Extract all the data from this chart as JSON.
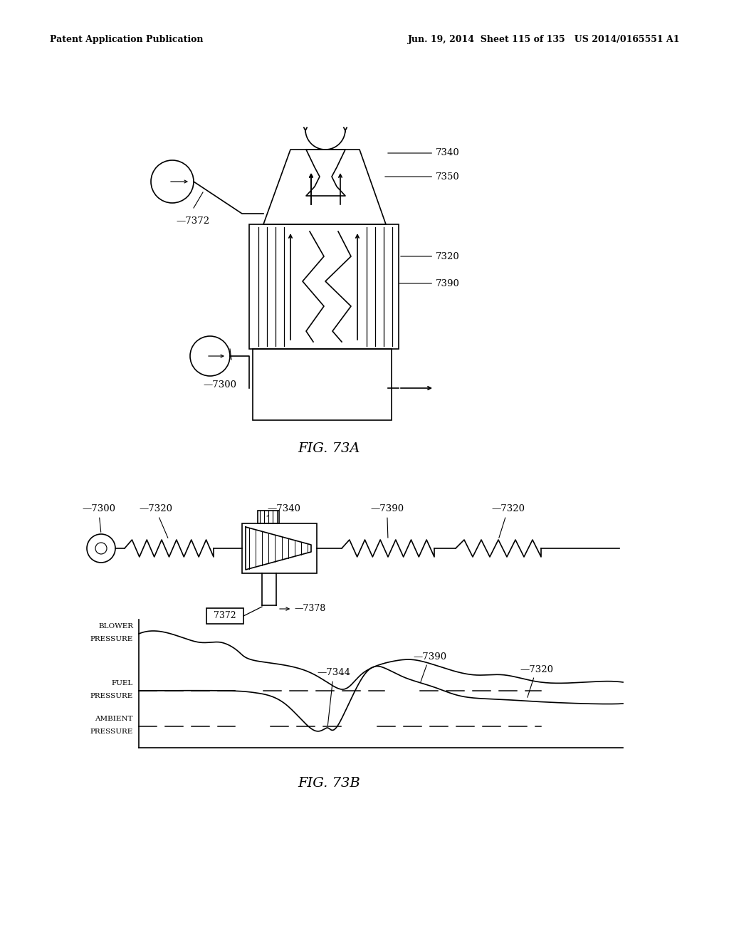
{
  "header_left": "Patent Application Publication",
  "header_right": "Jun. 19, 2014  Sheet 115 of 135   US 2014/0165551 A1",
  "fig73a_label": "FIG. 73A",
  "fig73b_label": "FIG. 73B",
  "background_color": "#ffffff",
  "line_color": "#000000"
}
